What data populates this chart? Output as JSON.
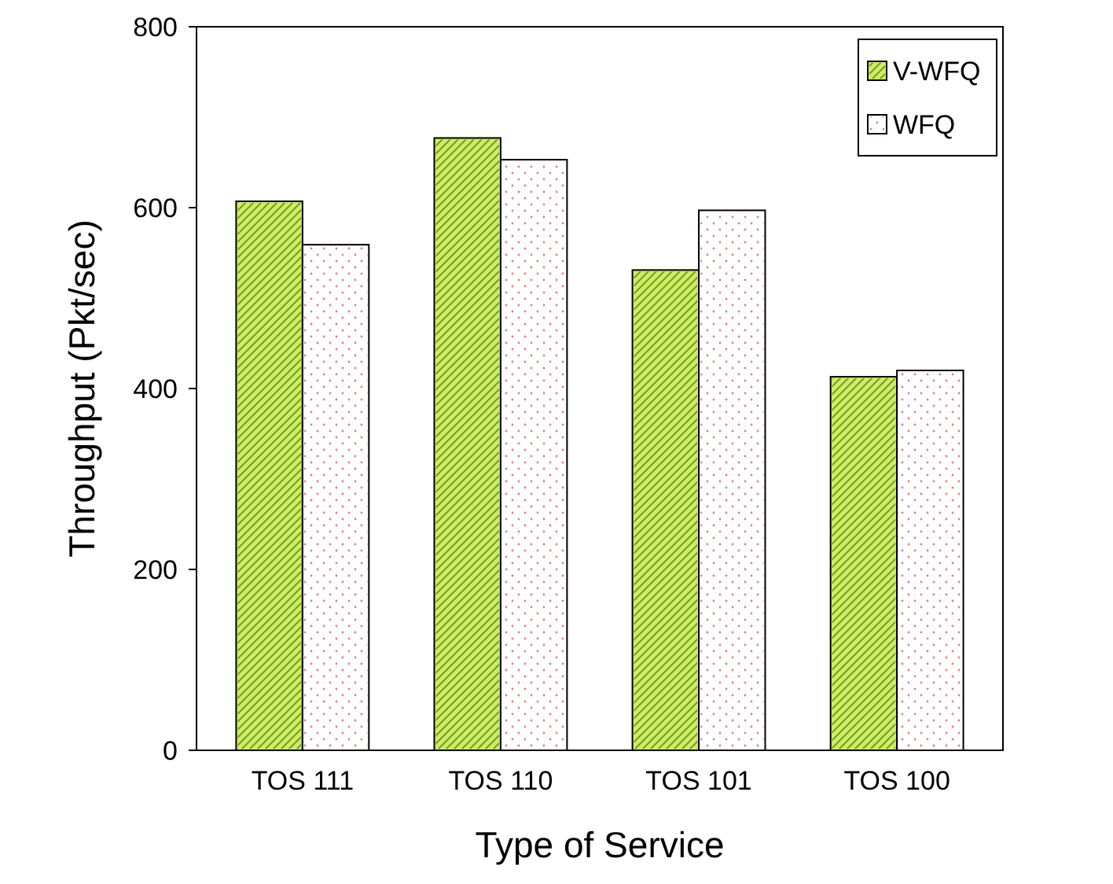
{
  "chart_data": {
    "type": "bar",
    "xlabel": "Type of Service",
    "ylabel": "Throughput (Pkt/sec)",
    "categories": [
      "TOS 111",
      "TOS 110",
      "TOS 101",
      "TOS 100"
    ],
    "series": [
      {
        "name": "V-WFQ",
        "color": "#ccee66",
        "values": [
          607,
          677,
          531,
          413
        ]
      },
      {
        "name": "WFQ",
        "color": "#ffffff",
        "values": [
          559,
          653,
          597,
          420
        ]
      }
    ],
    "ylim": [
      0,
      800
    ],
    "yticks": [
      0,
      200,
      400,
      600,
      800
    ],
    "grid": false,
    "legend": "top right"
  }
}
